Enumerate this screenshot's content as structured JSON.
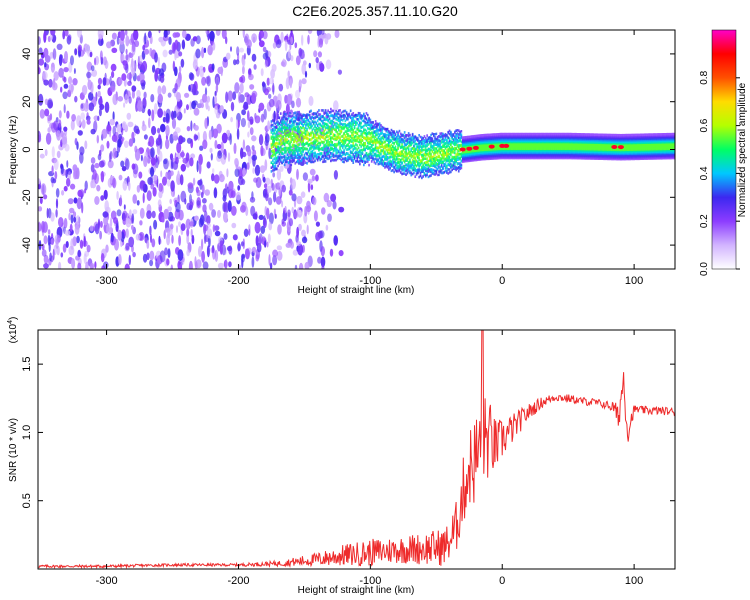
{
  "title": "C2E6.2025.357.11.10.G20",
  "chart_data": [
    {
      "type": "heatmap",
      "name": "spectrogram",
      "xlabel": "Height of straight line (km)",
      "ylabel": "Frequency (Hz)",
      "xlim": [
        -352,
        131
      ],
      "ylim": [
        -50,
        50
      ],
      "xticks": [
        "-300",
        "-200",
        "-100",
        "0",
        "100"
      ],
      "xtick_values": [
        -300,
        -200,
        -100,
        0,
        100
      ],
      "yticks": [
        "-40",
        "-20",
        "0",
        "20",
        "40"
      ],
      "ytick_values": [
        -40,
        -20,
        0,
        20,
        40
      ],
      "noise_region": {
        "x_from": -352,
        "x_to": -160,
        "description_value": 0.25
      },
      "signal_band": {
        "centerline": [
          {
            "x": -170,
            "y": 4
          },
          {
            "x": -150,
            "y": 5
          },
          {
            "x": -130,
            "y": 6
          },
          {
            "x": -110,
            "y": 5
          },
          {
            "x": -100,
            "y": 4
          },
          {
            "x": -90,
            "y": 1
          },
          {
            "x": -80,
            "y": -1
          },
          {
            "x": -70,
            "y": -2
          },
          {
            "x": -60,
            "y": -3
          },
          {
            "x": -50,
            "y": -2
          },
          {
            "x": -40,
            "y": -1
          },
          {
            "x": -30,
            "y": 0
          },
          {
            "x": -15,
            "y": 1
          },
          {
            "x": 0,
            "y": 1.5
          },
          {
            "x": 50,
            "y": 1.5
          },
          {
            "x": 90,
            "y": 1
          },
          {
            "x": 131,
            "y": 1.5
          }
        ],
        "hot_spots_x": [
          -30,
          -25,
          -20,
          -8,
          0,
          3,
          85,
          90
        ]
      },
      "colorbar": {
        "label": "Normalized spectral amplitude",
        "range": [
          0,
          1
        ],
        "ticks": [
          "0.0",
          "0.2",
          "0.4",
          "0.6",
          "0.8"
        ],
        "tick_values": [
          0.0,
          0.2,
          0.4,
          0.6,
          0.8
        ],
        "colors": [
          "#ffffff",
          "#d2b4ff",
          "#8c3cff",
          "#3c28f0",
          "#00c8ff",
          "#00ff64",
          "#b4ff00",
          "#ffdc00",
          "#ff5000",
          "#ff0000",
          "#ff00c8"
        ]
      }
    },
    {
      "type": "line",
      "name": "snr",
      "xlabel": "Height of straight line (km)",
      "ylabel": "SNR (10 * v/v)",
      "y_multiplier": "(x10",
      "y_multiplier_exp": "4",
      "y_multiplier_close": ")",
      "xlim": [
        -352,
        131
      ],
      "ylim": [
        0,
        1.75
      ],
      "xticks": [
        "-300",
        "-200",
        "-100",
        "0",
        "100"
      ],
      "xtick_values": [
        -300,
        -200,
        -100,
        0,
        100
      ],
      "yticks": [
        "0.5",
        "1.0",
        "1.5"
      ],
      "ytick_values": [
        0.5,
        1.0,
        1.5
      ],
      "line_color": "#ee2b2b",
      "series": [
        {
          "name": "SNR",
          "x": [
            -352,
            -300,
            -250,
            -200,
            -170,
            -160,
            -140,
            -120,
            -100,
            -80,
            -60,
            -45,
            -40,
            -35,
            -30,
            -25,
            -20,
            -16,
            -15,
            -14,
            -10,
            -5,
            0,
            10,
            20,
            30,
            40,
            50,
            60,
            70,
            80,
            85,
            88,
            92,
            95,
            100,
            110,
            120,
            131
          ],
          "y": [
            0.02,
            0.02,
            0.03,
            0.03,
            0.04,
            0.05,
            0.07,
            0.1,
            0.12,
            0.14,
            0.15,
            0.16,
            0.2,
            0.3,
            0.55,
            0.75,
            0.8,
            0.9,
            1.75,
            0.95,
            0.95,
            0.9,
            0.95,
            1.05,
            1.15,
            1.22,
            1.26,
            1.25,
            1.23,
            1.22,
            1.2,
            1.18,
            1.1,
            1.4,
            1.0,
            1.17,
            1.16,
            1.16,
            1.15
          ],
          "noise_amplitude": [
            0.01,
            0.01,
            0.01,
            0.01,
            0.02,
            0.03,
            0.05,
            0.08,
            0.1,
            0.1,
            0.12,
            0.14,
            0.15,
            0.2,
            0.25,
            0.3,
            0.35,
            0.35,
            0.1,
            0.35,
            0.3,
            0.2,
            0.15,
            0.1,
            0.06,
            0.04,
            0.03,
            0.03,
            0.03,
            0.03,
            0.03,
            0.05,
            0.1,
            0.12,
            0.1,
            0.03,
            0.03,
            0.03,
            0.03
          ]
        }
      ]
    }
  ]
}
